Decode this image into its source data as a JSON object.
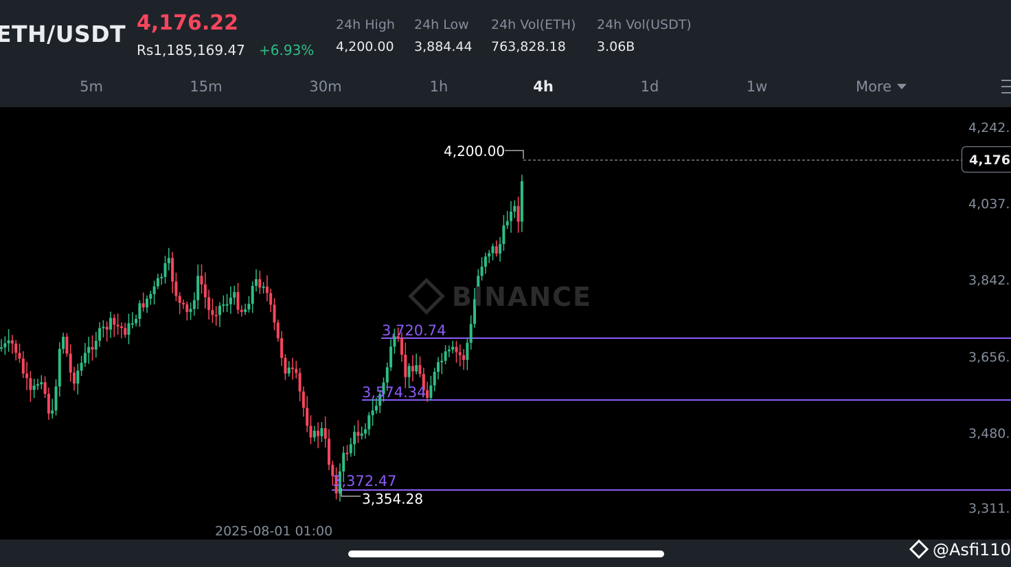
{
  "header": {
    "pair": "ETH/USDT",
    "last_price": "4,176.22",
    "fiat_price": "Rs1,185,169.47",
    "change": "+6.93%",
    "stats": [
      {
        "label": "24h High",
        "value": "4,200.00"
      },
      {
        "label": "24h Low",
        "value": "3,884.44"
      },
      {
        "label": "24h Vol(ETH)",
        "value": "763,828.18"
      },
      {
        "label": "24h Vol(USDT)",
        "value": "3.06B"
      }
    ]
  },
  "timeframes": [
    "5m",
    "15m",
    "30m",
    "1h",
    "4h",
    "1d",
    "1w",
    "More"
  ],
  "active_timeframe": "4h",
  "chart": {
    "y_axis_labels": [
      "4,242.",
      "4,037.",
      "3,842.",
      "3,656.",
      "3,480.",
      "3,311."
    ],
    "current_price_tag": "4,176.",
    "high_label": "4,200.00",
    "low_label": "3,354.28",
    "levels": [
      "3,720.74",
      "3,574.34",
      "3,372.47"
    ],
    "x_axis_label": "2025-08-01 01:00",
    "watermark": "BINANCE"
  },
  "footer": {
    "author": "@Asfi110"
  },
  "colors": {
    "up": "#2ebd85",
    "down": "#f6465d",
    "level_line": "#8a5cf6",
    "panel": "#1e2329"
  }
}
